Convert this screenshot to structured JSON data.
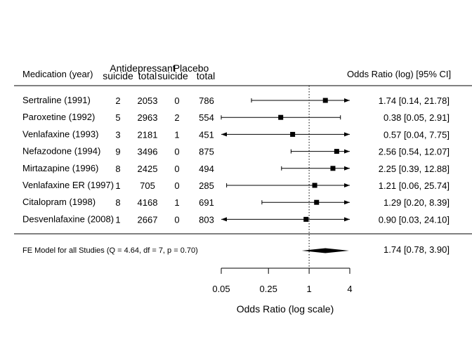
{
  "chart_data": {
    "type": "forest",
    "xlabel": "Odds Ratio (log scale)",
    "x_scale": "log",
    "xlim": [
      0.05,
      4
    ],
    "x_ticks": [
      0.05,
      0.25,
      1,
      4
    ],
    "x_tick_labels": [
      "0.05",
      "0.25",
      "1",
      "4"
    ],
    "reference_line": 1,
    "headers": {
      "medication": "Medication (year)",
      "antidepressant_group": "Antidepressant",
      "placebo_group": "Placebo",
      "ad_suicide": "suicide",
      "ad_total": "total",
      "pl_suicide": "suicide",
      "pl_total": "total",
      "effect": "Odds Ratio (log) [95% CI]"
    },
    "studies": [
      {
        "label": "Sertraline (1991)",
        "ad_suicide": "2",
        "ad_total": "2053",
        "pl_suicide": "0",
        "pl_total": "786",
        "or": 1.74,
        "ci_lower": 0.14,
        "ci_upper": 21.78,
        "or_text": "1.74 [0.14, 21.78]"
      },
      {
        "label": "Paroxetine (1992)",
        "ad_suicide": "5",
        "ad_total": "2963",
        "pl_suicide": "2",
        "pl_total": "554",
        "or": 0.38,
        "ci_lower": 0.05,
        "ci_upper": 2.91,
        "or_text": "0.38 [0.05,  2.91]"
      },
      {
        "label": "Venlafaxine (1993)",
        "ad_suicide": "3",
        "ad_total": "2181",
        "pl_suicide": "1",
        "pl_total": "451",
        "or": 0.57,
        "ci_lower": 0.04,
        "ci_upper": 7.75,
        "or_text": "0.57 [0.04,  7.75]"
      },
      {
        "label": "Nefazodone (1994)",
        "ad_suicide": "9",
        "ad_total": "3496",
        "pl_suicide": "0",
        "pl_total": "875",
        "or": 2.56,
        "ci_lower": 0.54,
        "ci_upper": 12.07,
        "or_text": "2.56 [0.54, 12.07]"
      },
      {
        "label": "Mirtazapine (1996)",
        "ad_suicide": "8",
        "ad_total": "2425",
        "pl_suicide": "0",
        "pl_total": "494",
        "or": 2.25,
        "ci_lower": 0.39,
        "ci_upper": 12.88,
        "or_text": "2.25 [0.39, 12.88]"
      },
      {
        "label": "Venlafaxine ER (1997)",
        "ad_suicide": "1",
        "ad_total": "705",
        "pl_suicide": "0",
        "pl_total": "285",
        "or": 1.21,
        "ci_lower": 0.06,
        "ci_upper": 25.74,
        "or_text": "1.21 [0.06, 25.74]"
      },
      {
        "label": "Citalopram (1998)",
        "ad_suicide": "8",
        "ad_total": "4168",
        "pl_suicide": "1",
        "pl_total": "691",
        "or": 1.29,
        "ci_lower": 0.2,
        "ci_upper": 8.39,
        "or_text": "1.29 [0.20,  8.39]"
      },
      {
        "label": "Desvenlafaxine (2008)",
        "ad_suicide": "1",
        "ad_total": "2667",
        "pl_suicide": "0",
        "pl_total": "803",
        "or": 0.9,
        "ci_lower": 0.03,
        "ci_upper": 24.1,
        "or_text": "0.90 [0.03, 24.10]"
      }
    ],
    "summary": {
      "label": "FE Model for all Studies (Q = 4.64, df = 7, p = 0.70)",
      "or": 1.74,
      "ci_lower": 0.78,
      "ci_upper": 3.9,
      "or_text": "1.74 [0.78,  3.90]"
    }
  }
}
